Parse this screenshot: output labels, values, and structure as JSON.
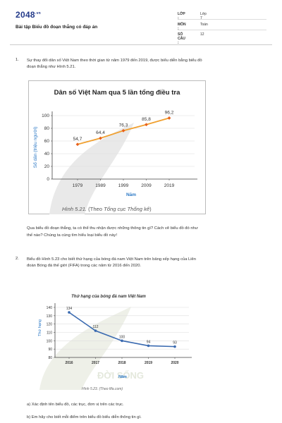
{
  "header": {
    "logo": "2048",
    "logo_suffix": ".vn",
    "doc_title": "Bài tập Biểu đồ đoạn thẳng có đáp án",
    "info": [
      {
        "key": "LỚP :",
        "value": "Lớp 7"
      },
      {
        "key": "MÔN :",
        "value": "Toán"
      },
      {
        "key": "SỐ CÂU :",
        "value": "12"
      }
    ]
  },
  "question1": {
    "number": "1.",
    "text_line1": "Sự thay đổi dân số Việt Nam theo thời gian từ năm 1979 đến 2019, được biểu diễn bằng biểu đồ",
    "text_line2": "đoạn thẳng như Hình 5.21.",
    "caption_prefix": "Hình 5.21.",
    "caption_rest": " (Theo ",
    "caption_source": "Tổng cục Thống kê",
    "caption_end": ")",
    "after_line1": "Qua biểu đồ đoạn thẳng, ta có thể thu nhận được những thông tin gì? Cách vẽ biểu đồ đó như",
    "after_line2": "thế nào? Chúng ta cùng tìm hiểu loại biểu đồ này!"
  },
  "question2": {
    "number": "2.",
    "text_line1": "Biểu đồ Hình 5.23 cho biết thứ hạng của bóng đá nam Việt Nam trên bảng xếp hạng của Liên",
    "text_line2": "đoàn Bóng đá thế giới (FIFA) trong các năm từ 2016 đến 2020.",
    "caption": "Hình 5.23. (Theo fifa.com)",
    "sub_a": "a) Xác định tên biểu đồ, các trục, đơn vị trên các trục.",
    "sub_b": "b) Em hãy cho biết mỗi điểm trên biểu đồ biểu diễn thông tin gì."
  },
  "chart_data": [
    {
      "type": "line",
      "title": "Dân số Việt Nam qua 5 lần tổng điều tra",
      "xlabel": "Năm",
      "ylabel": "Số dân (triệu người)",
      "x": [
        "1979",
        "1989",
        "1999",
        "2009",
        "2019"
      ],
      "series": [
        {
          "values": [
            54.7,
            64.4,
            76.3,
            85.8,
            96.2
          ]
        }
      ],
      "data_labels": [
        "54,7",
        "64,4",
        "76,3",
        "85,8",
        "96,2"
      ],
      "yticks": [
        "0",
        "20",
        "40",
        "60",
        "80",
        "100"
      ],
      "ylim": [
        0,
        100
      ],
      "grid": true,
      "line_color": "#f0a030",
      "marker_color": "#e8601c"
    },
    {
      "type": "line",
      "title": "Thứ hạng của bóng đá nam Việt Nam",
      "xlabel": "Năm",
      "ylabel": "Thứ hạng",
      "x": [
        "2016",
        "2017",
        "2018",
        "2019",
        "2020"
      ],
      "series": [
        {
          "values": [
            134,
            112,
            100,
            94,
            93
          ]
        }
      ],
      "data_labels": [
        "134",
        "112",
        "100",
        "94",
        "93"
      ],
      "yticks": [
        "80",
        "90",
        "100",
        "110",
        "120",
        "130",
        "140"
      ],
      "ylim": [
        80,
        140
      ],
      "grid": true,
      "line_color": "#3a6ab0",
      "marker_color": "#3a6ab0"
    }
  ]
}
